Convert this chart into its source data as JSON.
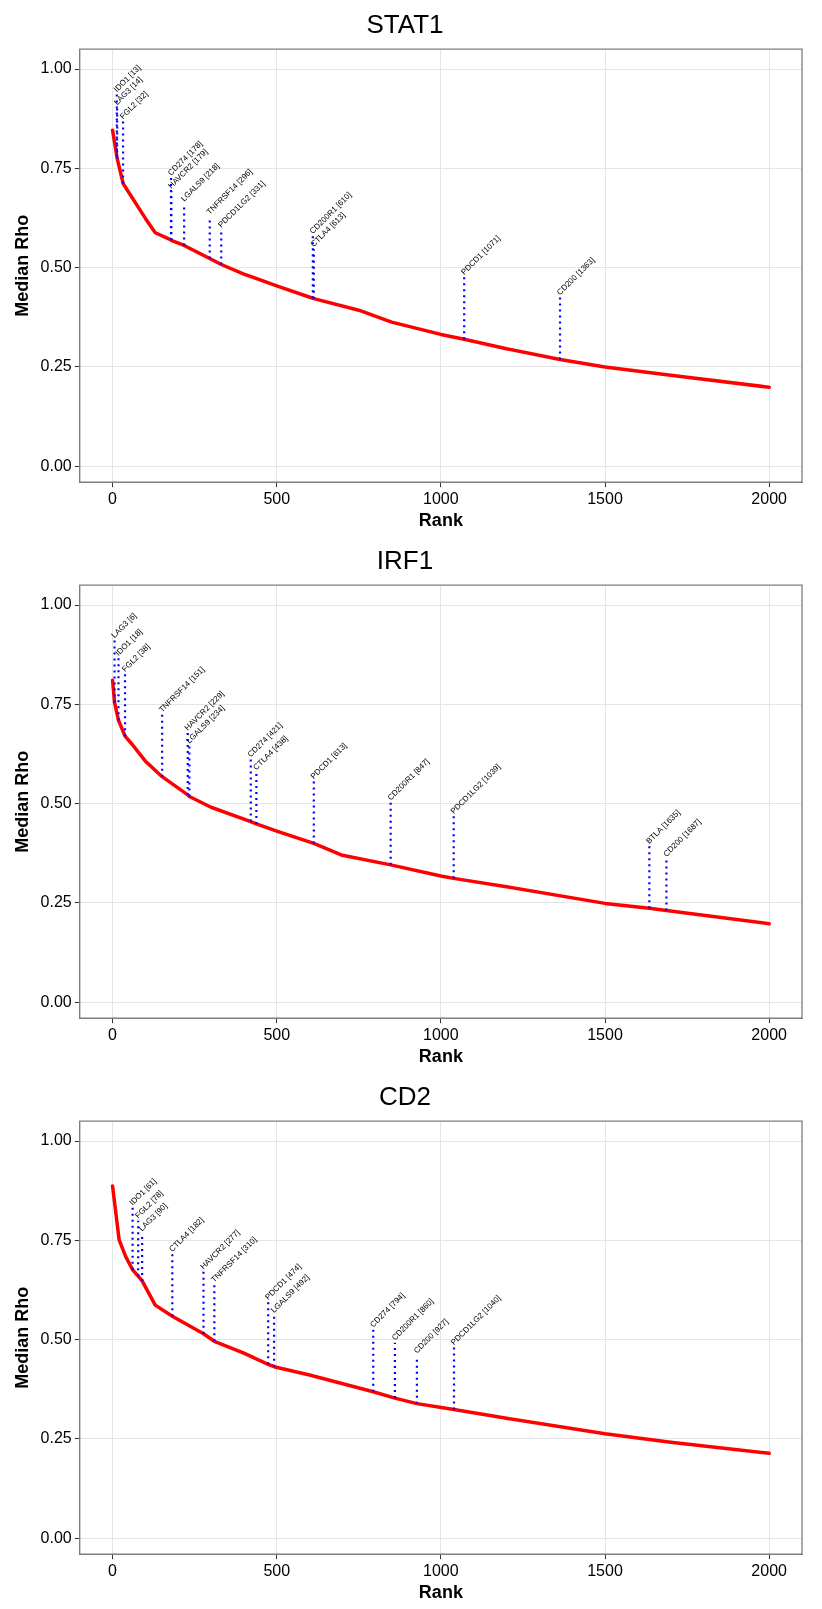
{
  "chart_data": [
    {
      "type": "line",
      "title": "STAT1",
      "xlabel": "Rank",
      "ylabel": "Median Rho",
      "grid": true,
      "marker": "none",
      "xlim": [
        -100,
        2100
      ],
      "xticks": [
        0,
        500,
        1000,
        1500,
        2000
      ],
      "ylim": [
        -0.04,
        1.05
      ],
      "yticks": [
        {
          "value": 0,
          "label": "0.00"
        },
        {
          "value": 0.25,
          "label": "0.25"
        },
        {
          "value": 0.5,
          "label": "0.50"
        },
        {
          "value": 0.75,
          "label": "0.75"
        },
        {
          "value": 1,
          "label": "1.00"
        }
      ],
      "x": [
        0,
        13,
        14,
        32,
        100,
        130,
        178,
        179,
        218,
        296,
        331,
        400,
        500,
        610,
        613,
        750,
        850,
        1000,
        1071,
        1200,
        1363,
        1500,
        1700,
        2000
      ],
      "series": [
        {
          "color": "#ff0000",
          "values": [
            0.846,
            0.78,
            0.775,
            0.712,
            0.624,
            0.588,
            0.57,
            0.569,
            0.556,
            0.523,
            0.508,
            0.484,
            0.454,
            0.423,
            0.422,
            0.393,
            0.363,
            0.332,
            0.32,
            0.296,
            0.269,
            0.25,
            0.229,
            0.199
          ]
        }
      ],
      "annotations": [
        {
          "text": "IDO1 [13]",
          "x": 13,
          "y": 0.78
        },
        {
          "text": "LAG3 [14]",
          "x": 14,
          "y": 0.775
        },
        {
          "text": "FGL2 [32]",
          "x": 32,
          "y": 0.712
        },
        {
          "text": "CD274 [178]",
          "x": 178,
          "y": 0.57
        },
        {
          "text": "HAVCR2 [179]",
          "x": 179,
          "y": 0.569
        },
        {
          "text": "LGALS9 [218]",
          "x": 218,
          "y": 0.556
        },
        {
          "text": "TNFRSF14 [296]",
          "x": 296,
          "y": 0.523
        },
        {
          "text": "PDCD1LG2 [331]",
          "x": 331,
          "y": 0.508
        },
        {
          "text": "CD200R1 [610]",
          "x": 610,
          "y": 0.423
        },
        {
          "text": "CTLA4 [613]",
          "x": 613,
          "y": 0.422
        },
        {
          "text": "PDCD1 [1071]",
          "x": 1071,
          "y": 0.32
        },
        {
          "text": "CD200 [1363]",
          "x": 1363,
          "y": 0.269
        }
      ]
    },
    {
      "type": "line",
      "title": "IRF1",
      "xlabel": "Rank",
      "ylabel": "Median Rho",
      "grid": true,
      "marker": "none",
      "xlim": [
        -100,
        2100
      ],
      "xticks": [
        0,
        500,
        1000,
        1500,
        2000
      ],
      "ylim": [
        -0.04,
        1.05
      ],
      "yticks": [
        {
          "value": 0,
          "label": "0.00"
        },
        {
          "value": 0.25,
          "label": "0.25"
        },
        {
          "value": 0.5,
          "label": "0.50"
        },
        {
          "value": 0.75,
          "label": "0.75"
        },
        {
          "value": 1,
          "label": "1.00"
        }
      ],
      "x": [
        0,
        6,
        18,
        38,
        60,
        100,
        151,
        229,
        234,
        300,
        421,
        438,
        500,
        613,
        700,
        847,
        1000,
        1039,
        1200,
        1500,
        1635,
        1687,
        2000
      ],
      "series": [
        {
          "color": "#ff0000",
          "values": [
            0.811,
            0.755,
            0.71,
            0.67,
            0.649,
            0.607,
            0.568,
            0.522,
            0.518,
            0.491,
            0.455,
            0.449,
            0.431,
            0.4,
            0.37,
            0.346,
            0.318,
            0.312,
            0.291,
            0.249,
            0.237,
            0.231,
            0.198
          ]
        }
      ],
      "annotations": [
        {
          "text": "LAG3 [6]",
          "x": 6,
          "y": 0.755
        },
        {
          "text": "IDO1 [18]",
          "x": 18,
          "y": 0.71
        },
        {
          "text": "FGL2 [38]",
          "x": 38,
          "y": 0.67
        },
        {
          "text": "TNFRSF14 [151]",
          "x": 151,
          "y": 0.568
        },
        {
          "text": "HAVCR2 [229]",
          "x": 229,
          "y": 0.522
        },
        {
          "text": "LGALS9 [234]",
          "x": 234,
          "y": 0.518
        },
        {
          "text": "CD274 [421]",
          "x": 421,
          "y": 0.455
        },
        {
          "text": "CTLA4 [438]",
          "x": 438,
          "y": 0.449
        },
        {
          "text": "PDCD1 [613]",
          "x": 613,
          "y": 0.4
        },
        {
          "text": "CD200R1 [847]",
          "x": 847,
          "y": 0.346
        },
        {
          "text": "PDCD1LG2 [1039]",
          "x": 1039,
          "y": 0.312
        },
        {
          "text": "BTLA [1635]",
          "x": 1635,
          "y": 0.237
        },
        {
          "text": "CD200 [1687]",
          "x": 1687,
          "y": 0.231
        }
      ]
    },
    {
      "type": "line",
      "title": "CD2",
      "xlabel": "Rank",
      "ylabel": "Median Rho",
      "grid": true,
      "marker": "none",
      "xlim": [
        -100,
        2100
      ],
      "xticks": [
        0,
        500,
        1000,
        1500,
        2000
      ],
      "ylim": [
        -0.04,
        1.05
      ],
      "yticks": [
        {
          "value": 0,
          "label": "0.00"
        },
        {
          "value": 0.25,
          "label": "0.25"
        },
        {
          "value": 0.5,
          "label": "0.50"
        },
        {
          "value": 0.75,
          "label": "0.75"
        },
        {
          "value": 1,
          "label": "1.00"
        }
      ],
      "x": [
        0,
        20,
        40,
        61,
        78,
        90,
        130,
        182,
        277,
        310,
        400,
        474,
        492,
        600,
        794,
        860,
        927,
        1040,
        1200,
        1500,
        1700,
        2000
      ],
      "series": [
        {
          "color": "#ff0000",
          "values": [
            0.887,
            0.751,
            0.709,
            0.676,
            0.66,
            0.648,
            0.587,
            0.559,
            0.515,
            0.496,
            0.466,
            0.438,
            0.432,
            0.411,
            0.369,
            0.353,
            0.339,
            0.324,
            0.302,
            0.263,
            0.242,
            0.214
          ]
        }
      ],
      "annotations": [
        {
          "text": "IDO1 [61]",
          "x": 61,
          "y": 0.676
        },
        {
          "text": "FGL2 [78]",
          "x": 78,
          "y": 0.66
        },
        {
          "text": "LAG3 [90]",
          "x": 90,
          "y": 0.648
        },
        {
          "text": "CTLA4 [182]",
          "x": 182,
          "y": 0.559
        },
        {
          "text": "HAVCR2 [277]",
          "x": 277,
          "y": 0.515
        },
        {
          "text": "TNFRSF14 [310]",
          "x": 310,
          "y": 0.496
        },
        {
          "text": "PDCD1 [474]",
          "x": 474,
          "y": 0.438
        },
        {
          "text": "LGALS9 [492]",
          "x": 492,
          "y": 0.432
        },
        {
          "text": "CD274 [794]",
          "x": 794,
          "y": 0.369
        },
        {
          "text": "CD200R1 [860]",
          "x": 860,
          "y": 0.353
        },
        {
          "text": "CD200 [927]",
          "x": 927,
          "y": 0.339
        },
        {
          "text": "PDCD1LG2 [1040]",
          "x": 1040,
          "y": 0.324
        }
      ]
    }
  ]
}
